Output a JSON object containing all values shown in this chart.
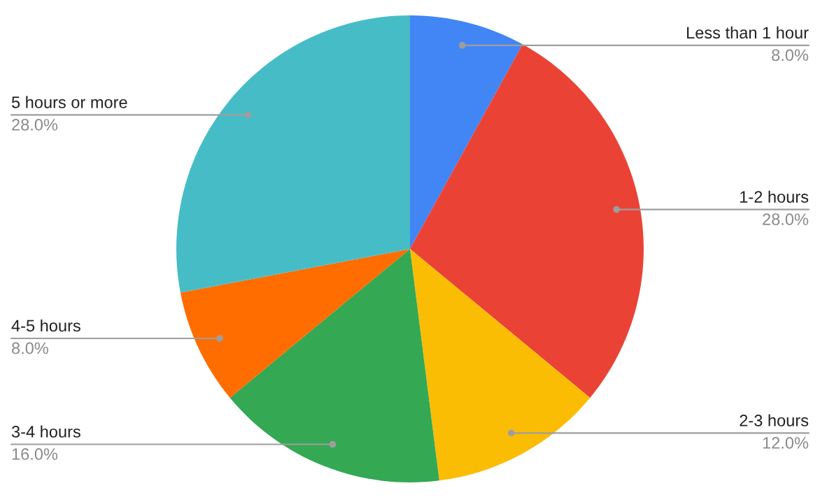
{
  "chart_data": {
    "type": "pie",
    "categories": [
      "Less than 1 hour",
      "1-2 hours",
      "2-3 hours",
      "3-4 hours",
      "4-5 hours",
      "5 hours or more"
    ],
    "values": [
      8,
      28,
      12,
      16,
      8,
      28
    ],
    "value_labels": [
      "8.0%",
      "28.0%",
      "12.0%",
      "16.0%",
      "8.0%",
      "28.0%"
    ],
    "colors": [
      "#4285f4",
      "#ea4335",
      "#fbbc04",
      "#34a853",
      "#ff6d01",
      "#46bdc6"
    ],
    "legend": false
  }
}
